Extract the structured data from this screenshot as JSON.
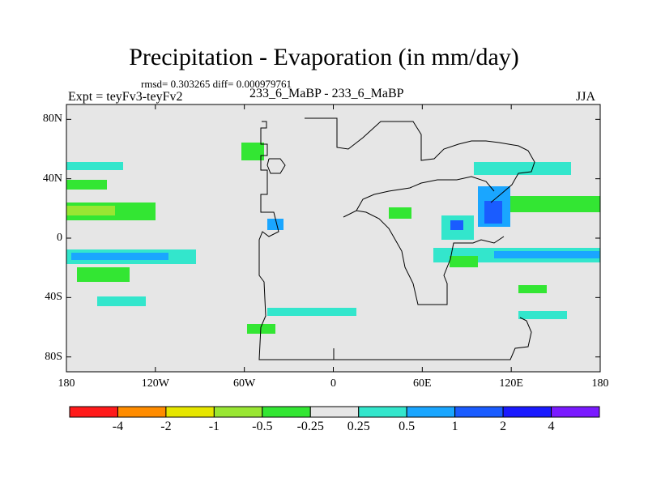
{
  "figure": {
    "title": "Precipitation - Evaporation (in mm/day)",
    "stats": "rmsd= 0.303265 diff= 0.000979761",
    "experiment": "Expt = teyFv3-teyFv2",
    "runs": "233_6_MaBP - 233_6_MaBP",
    "season": "JJA"
  },
  "map_axes": {
    "lat_range": [
      -90,
      90
    ],
    "lon_range": [
      -180,
      180
    ],
    "lat_ticks": [
      {
        "value": 80,
        "label": "80N"
      },
      {
        "value": 40,
        "label": "40N"
      },
      {
        "value": 0,
        "label": "0"
      },
      {
        "value": -40,
        "label": "40S"
      },
      {
        "value": -80,
        "label": "80S"
      }
    ],
    "lon_ticks": [
      {
        "value": -180,
        "label": "180"
      },
      {
        "value": -120,
        "label": "120W"
      },
      {
        "value": -60,
        "label": "60W"
      },
      {
        "value": 0,
        "label": "0"
      },
      {
        "value": 60,
        "label": "60E"
      },
      {
        "value": 120,
        "label": "120E"
      },
      {
        "value": 180,
        "label": "180"
      }
    ]
  },
  "colorbar": {
    "colors": [
      "#ff1a1a",
      "#ff8c00",
      "#e6e600",
      "#99e633",
      "#33e633",
      "#e6e6e6",
      "#33e6cc",
      "#1aa6ff",
      "#1a5cff",
      "#1a1aff",
      "#7a1aff"
    ],
    "labels": [
      "-4",
      "-2",
      "-1",
      "-0.5",
      "-0.25",
      "0.25",
      "0.5",
      "1",
      "2",
      "4"
    ]
  },
  "colors": {
    "background": "#e6e6e6",
    "outline": "#000000"
  }
}
